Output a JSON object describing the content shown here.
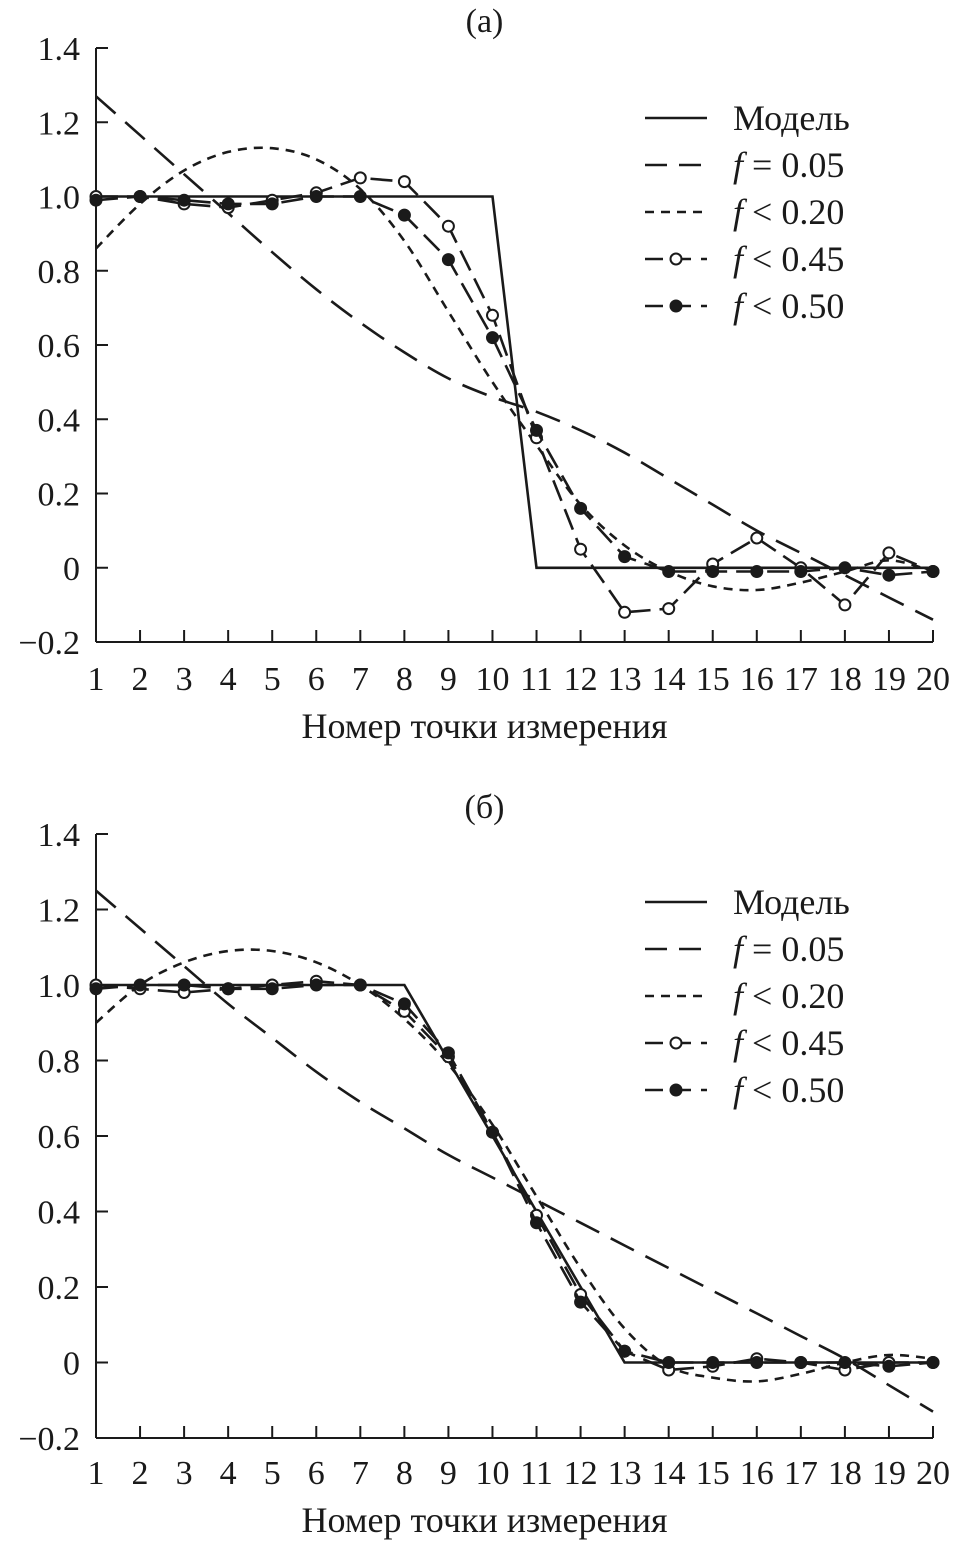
{
  "chart_data": [
    {
      "type": "line",
      "panel_label": "(а)",
      "xlabel": "Номер точки измерения",
      "ylabel": "",
      "xlim": [
        1,
        20
      ],
      "ylim": [
        -0.2,
        1.4
      ],
      "x_ticks": [
        "1",
        "2",
        "3",
        "4",
        "5",
        "6",
        "7",
        "8",
        "9",
        "10",
        "11",
        "12",
        "13",
        "14",
        "15",
        "16",
        "17",
        "18",
        "19",
        "20"
      ],
      "y_ticks": [
        "1.4",
        "1.2",
        "1.0",
        "0.8",
        "0.6",
        "0.4",
        "0.2",
        "0",
        "−0.2"
      ],
      "y_tick_values": [
        1.4,
        1.2,
        1.0,
        0.8,
        0.6,
        0.4,
        0.2,
        0,
        -0.2
      ],
      "grid": false,
      "legend_position": "top-right",
      "series": [
        {
          "name": "Модель",
          "style": "solid",
          "x": [
            1,
            2,
            3,
            4,
            5,
            6,
            7,
            8,
            9,
            10,
            11,
            12,
            13,
            14,
            15,
            16,
            17,
            18,
            19,
            20
          ],
          "values": [
            1,
            1,
            1,
            1,
            1,
            1,
            1,
            1,
            1,
            1,
            0,
            0,
            0,
            0,
            0,
            0,
            0,
            0,
            0,
            0
          ]
        },
        {
          "name": "f = 0.05",
          "style": "dashed",
          "x": [
            1,
            2,
            3,
            4,
            5,
            6,
            7,
            8,
            9,
            10,
            11,
            12,
            13,
            14,
            15,
            16,
            17,
            18,
            19,
            20
          ],
          "values": [
            1.27,
            1.165,
            1.06,
            0.955,
            0.85,
            0.75,
            0.66,
            0.58,
            0.51,
            0.46,
            0.42,
            0.37,
            0.31,
            0.24,
            0.17,
            0.1,
            0.04,
            -0.02,
            -0.08,
            -0.14
          ]
        },
        {
          "name": "f < 0.20",
          "style": "dotted",
          "x": [
            1,
            2,
            3,
            4,
            5,
            6,
            7,
            8,
            9,
            10,
            11,
            12,
            13,
            14,
            15,
            16,
            17,
            18,
            19,
            20
          ],
          "values": [
            0.86,
            0.98,
            1.07,
            1.12,
            1.13,
            1.1,
            1.02,
            0.88,
            0.69,
            0.5,
            0.33,
            0.17,
            0.06,
            -0.01,
            -0.05,
            -0.06,
            -0.04,
            -0.01,
            0.02,
            -0.01
          ]
        },
        {
          "name": "f < 0.45",
          "style": "open-markers",
          "x": [
            1,
            2,
            3,
            4,
            5,
            6,
            7,
            8,
            9,
            10,
            11,
            12,
            13,
            14,
            15,
            16,
            17,
            18,
            19,
            20
          ],
          "values": [
            1.0,
            1.0,
            0.98,
            0.97,
            0.99,
            1.01,
            1.05,
            1.04,
            0.92,
            0.68,
            0.35,
            0.05,
            -0.12,
            -0.11,
            0.01,
            0.08,
            0.0,
            -0.1,
            0.04,
            -0.01
          ]
        },
        {
          "name": "f < 0.50",
          "style": "filled-markers",
          "x": [
            1,
            2,
            3,
            4,
            5,
            6,
            7,
            8,
            9,
            10,
            11,
            12,
            13,
            14,
            15,
            16,
            17,
            18,
            19,
            20
          ],
          "values": [
            0.99,
            1.0,
            0.99,
            0.98,
            0.98,
            1.0,
            1.0,
            0.95,
            0.83,
            0.62,
            0.37,
            0.16,
            0.03,
            -0.01,
            -0.01,
            -0.01,
            -0.01,
            0.0,
            -0.02,
            -0.01
          ]
        }
      ]
    },
    {
      "type": "line",
      "panel_label": "(б)",
      "xlabel": "Номер точки измерения",
      "ylabel": "",
      "xlim": [
        1,
        20
      ],
      "ylim": [
        -0.2,
        1.4
      ],
      "x_ticks": [
        "1",
        "2",
        "3",
        "4",
        "5",
        "6",
        "7",
        "8",
        "9",
        "10",
        "11",
        "12",
        "13",
        "14",
        "15",
        "16",
        "17",
        "18",
        "19",
        "20"
      ],
      "y_ticks": [
        "1.4",
        "1.2",
        "1.0",
        "0.8",
        "0.6",
        "0.4",
        "0.2",
        "0",
        "−0.2"
      ],
      "y_tick_values": [
        1.4,
        1.2,
        1.0,
        0.8,
        0.6,
        0.4,
        0.2,
        0,
        -0.2
      ],
      "grid": false,
      "legend_position": "top-right",
      "series": [
        {
          "name": "Модель",
          "style": "solid",
          "x": [
            1,
            2,
            3,
            4,
            5,
            6,
            7,
            8,
            9,
            10,
            11,
            12,
            13,
            14,
            15,
            16,
            17,
            18,
            19,
            20
          ],
          "values": [
            1,
            1,
            1,
            1,
            1,
            1,
            1,
            1,
            0.8,
            0.6,
            0.4,
            0.2,
            0,
            0,
            0,
            0,
            0,
            0,
            0,
            0
          ]
        },
        {
          "name": "f = 0.05",
          "style": "dashed",
          "x": [
            1,
            2,
            3,
            4,
            5,
            6,
            7,
            8,
            9,
            10,
            11,
            12,
            13,
            14,
            15,
            16,
            17,
            18,
            19,
            20
          ],
          "values": [
            1.25,
            1.15,
            1.05,
            0.95,
            0.86,
            0.77,
            0.69,
            0.62,
            0.55,
            0.49,
            0.43,
            0.37,
            0.31,
            0.25,
            0.19,
            0.13,
            0.07,
            0.01,
            -0.06,
            -0.13
          ]
        },
        {
          "name": "f < 0.20",
          "style": "dotted",
          "x": [
            1,
            2,
            3,
            4,
            5,
            6,
            7,
            8,
            9,
            10,
            11,
            12,
            13,
            14,
            15,
            16,
            17,
            18,
            19,
            20
          ],
          "values": [
            0.9,
            1.0,
            1.06,
            1.09,
            1.09,
            1.06,
            1.0,
            0.91,
            0.79,
            0.63,
            0.44,
            0.25,
            0.09,
            -0.01,
            -0.04,
            -0.05,
            -0.03,
            0.0,
            0.02,
            0.01
          ]
        },
        {
          "name": "f < 0.45",
          "style": "open-markers",
          "x": [
            1,
            2,
            3,
            4,
            5,
            6,
            7,
            8,
            9,
            10,
            11,
            12,
            13,
            14,
            15,
            16,
            17,
            18,
            19,
            20
          ],
          "values": [
            1.0,
            0.99,
            0.98,
            0.99,
            1.0,
            1.01,
            1.0,
            0.93,
            0.81,
            0.61,
            0.39,
            0.18,
            0.03,
            -0.02,
            -0.01,
            0.01,
            0.0,
            -0.02,
            0.0,
            0.0
          ]
        },
        {
          "name": "f < 0.50",
          "style": "filled-markers",
          "x": [
            1,
            2,
            3,
            4,
            5,
            6,
            7,
            8,
            9,
            10,
            11,
            12,
            13,
            14,
            15,
            16,
            17,
            18,
            19,
            20
          ],
          "values": [
            0.99,
            1.0,
            1.0,
            0.99,
            0.99,
            1.0,
            1.0,
            0.95,
            0.82,
            0.61,
            0.37,
            0.16,
            0.03,
            0.0,
            0.0,
            0.0,
            0.0,
            0.0,
            -0.01,
            0.0
          ]
        }
      ]
    }
  ]
}
